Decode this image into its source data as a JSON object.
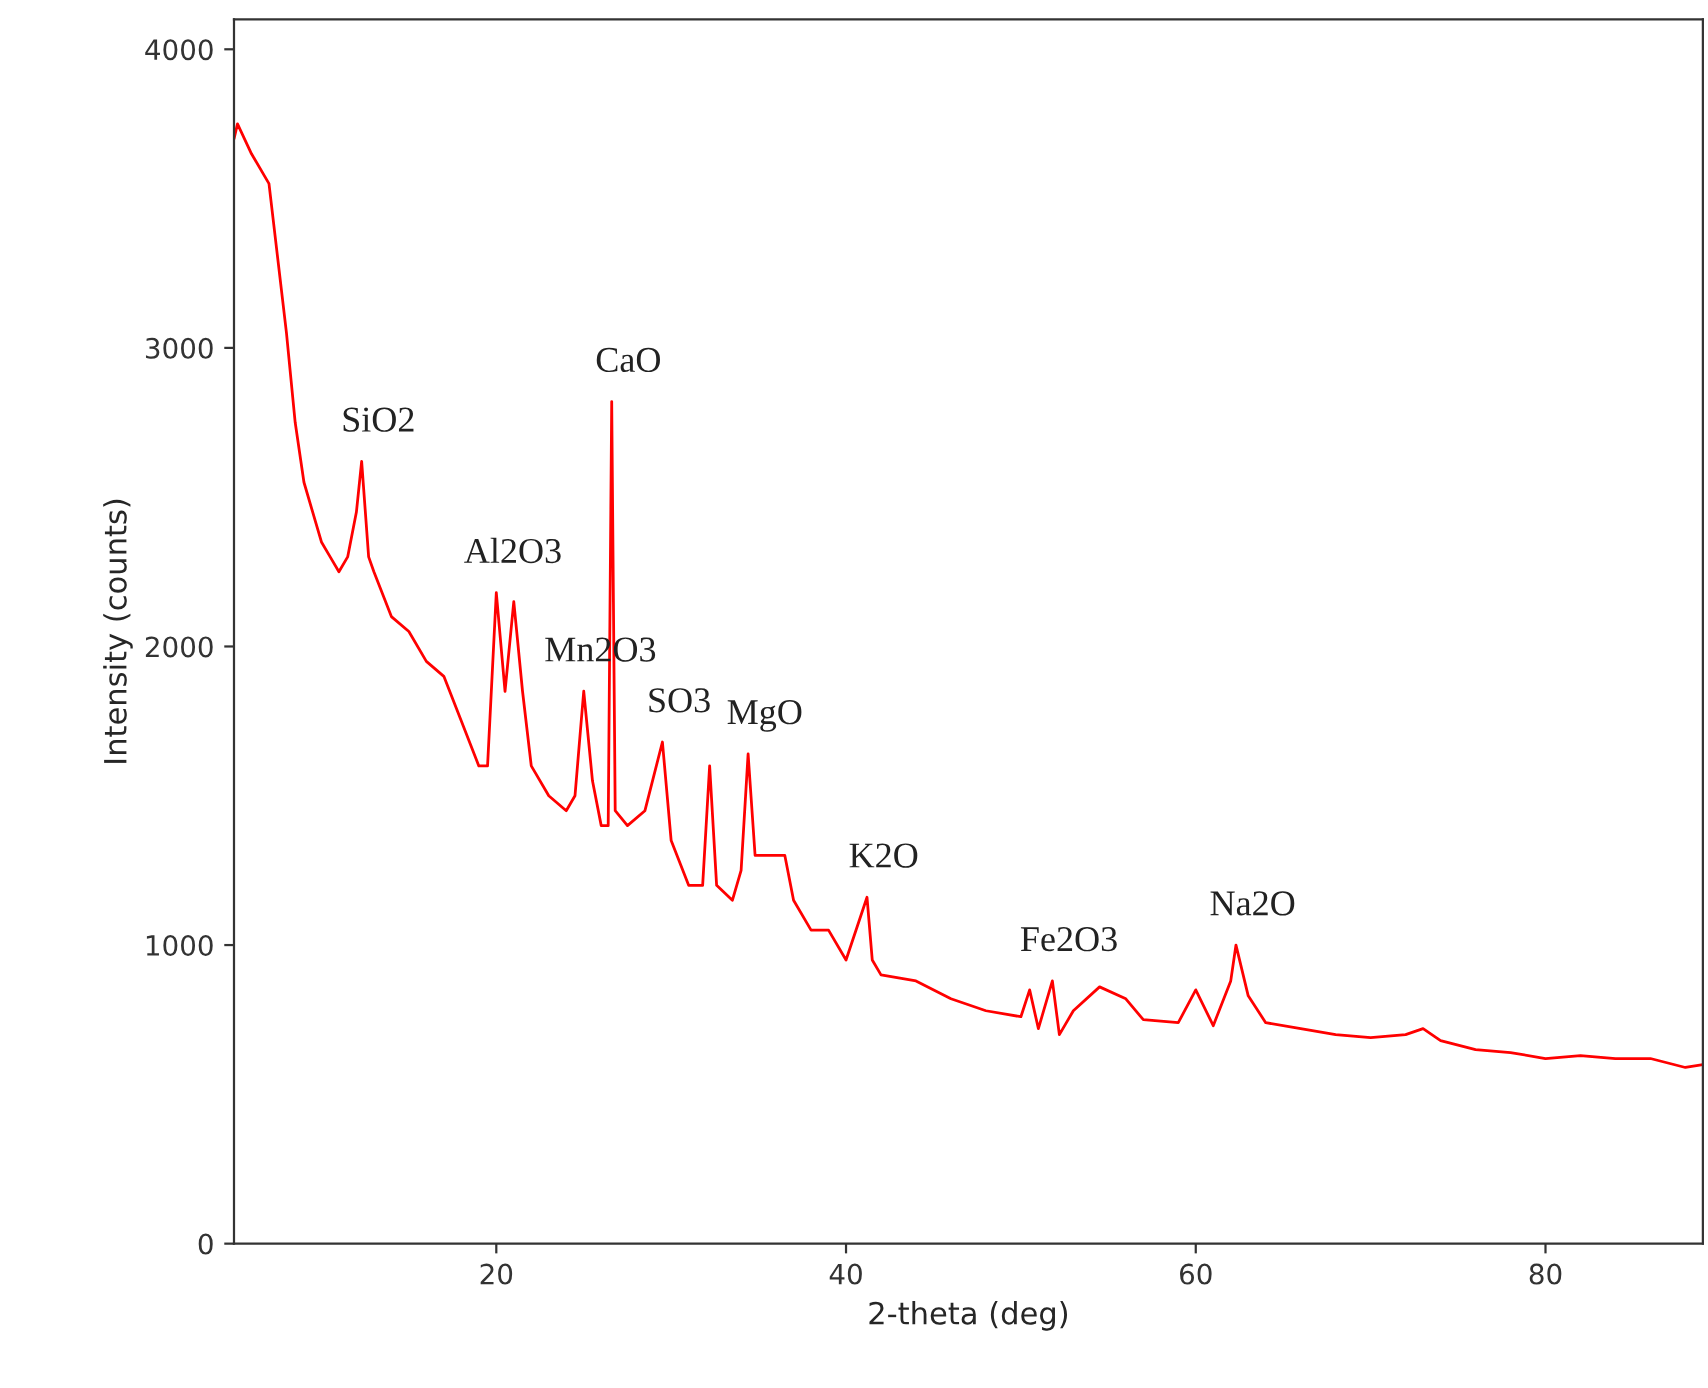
{
  "chart_data": {
    "type": "line",
    "xlabel": "2-theta (deg)",
    "ylabel": "Intensity (counts)",
    "xlim": [
      5,
      89
    ],
    "ylim": [
      0,
      4100
    ],
    "xticks": [
      20,
      40,
      60,
      80
    ],
    "yticks": [
      0,
      1000,
      2000,
      3000,
      4000
    ],
    "grid": false,
    "legend": false,
    "marker": "none",
    "line_style": "solid",
    "series": [
      {
        "color": "#ff0000",
        "x": [
          5,
          5.2,
          6,
          7,
          8,
          8.5,
          9,
          10,
          10.5,
          11,
          11.5,
          12,
          12.3,
          12.7,
          13,
          14,
          15,
          16,
          17,
          18,
          19,
          19.5,
          20,
          20.5,
          21,
          21.5,
          22,
          23,
          24,
          24.5,
          25,
          25.5,
          26,
          26.4,
          26.6,
          26.8,
          27.5,
          28.5,
          29.5,
          30,
          31,
          31.8,
          32.2,
          32.6,
          33.5,
          34,
          34.4,
          34.8,
          35.5,
          36.5,
          37,
          38,
          39,
          40,
          41.2,
          41.5,
          42,
          44,
          46,
          48,
          50,
          50.5,
          51,
          51.8,
          52.2,
          53,
          54.5,
          56,
          57,
          59,
          60,
          61,
          62,
          62.3,
          63,
          64,
          66,
          68,
          70,
          72,
          73,
          74,
          76,
          78,
          80,
          82,
          84,
          86,
          88,
          89
        ],
        "values": [
          3700,
          3750,
          3650,
          3550,
          3050,
          2750,
          2550,
          2350,
          2300,
          2250,
          2300,
          2450,
          2620,
          2300,
          2250,
          2100,
          2050,
          1950,
          1900,
          1750,
          1600,
          1600,
          2180,
          1850,
          2150,
          1850,
          1600,
          1500,
          1450,
          1500,
          1850,
          1550,
          1400,
          1400,
          2820,
          1450,
          1400,
          1450,
          1680,
          1350,
          1200,
          1200,
          1600,
          1200,
          1150,
          1250,
          1640,
          1300,
          1300,
          1300,
          1150,
          1050,
          1050,
          950,
          1160,
          950,
          900,
          880,
          820,
          780,
          760,
          850,
          720,
          880,
          700,
          780,
          860,
          820,
          750,
          740,
          850,
          730,
          880,
          1000,
          830,
          740,
          720,
          700,
          690,
          700,
          720,
          680,
          650,
          640,
          620,
          630,
          620,
          620,
          590,
          600
        ]
      }
    ],
    "annotations": [
      {
        "text": "SiO2",
        "x": 12.3,
        "y": 2620
      },
      {
        "text": "CaO",
        "x": 26.6,
        "y": 2820
      },
      {
        "text": "Al2O3",
        "x": 20,
        "y": 2180
      },
      {
        "text": "Mn2O3",
        "x": 25,
        "y": 1850
      },
      {
        "text": "SO3",
        "x": 29.5,
        "y": 1680
      },
      {
        "text": "MgO",
        "x": 34.4,
        "y": 1640
      },
      {
        "text": "K2O",
        "x": 41.2,
        "y": 1160
      },
      {
        "text": "Fe2O3",
        "x": 51.8,
        "y": 880
      },
      {
        "text": "Na2O",
        "x": 62.3,
        "y": 1000
      }
    ]
  }
}
